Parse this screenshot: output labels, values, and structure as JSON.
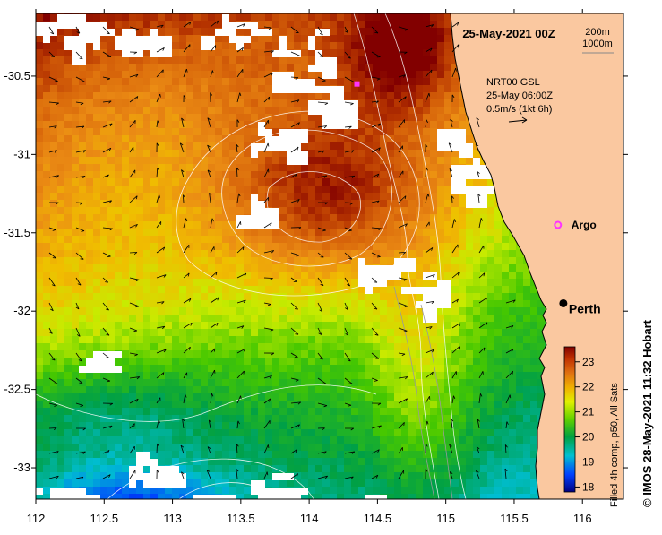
{
  "map": {
    "date_label": "25-May-2021 00Z",
    "contours": [
      "200m",
      "1000m"
    ],
    "current_info": [
      "NRT00 GSL",
      "25-May 06:00Z",
      "0.5m/s (1kt 6h)"
    ],
    "places": [
      {
        "name": "Argo",
        "lon": 115.82,
        "lat": -31.45,
        "marker": "magenta-circle"
      },
      {
        "name": "Perth",
        "lon": 115.86,
        "lat": -31.95,
        "marker": "black-dot"
      }
    ],
    "marker_extra": {
      "lon": 114.35,
      "lat": -30.55
    },
    "lon_ticks": [
      "112",
      "112.5",
      "113",
      "113.5",
      "114",
      "114.5",
      "115",
      "115.5",
      "116"
    ],
    "lat_ticks": [
      "-30.5",
      "-31",
      "-31.5",
      "-32",
      "-32.5",
      "-33"
    ],
    "lon_range": [
      112,
      116.3
    ],
    "lat_range": [
      -30.1,
      -33.2
    ],
    "colorbar": {
      "ticks": [
        "23",
        "22",
        "21",
        "20",
        "19",
        "18"
      ],
      "range": [
        17.8,
        23.6
      ],
      "label": "Filled 4h comp, p50, All Sats"
    },
    "credit": "© IMOS 28-May-2021 11:32 Hobart",
    "colors": {
      "land": "#FAC8A0",
      "marker": "#FF33FF",
      "coast": "#000000"
    }
  }
}
